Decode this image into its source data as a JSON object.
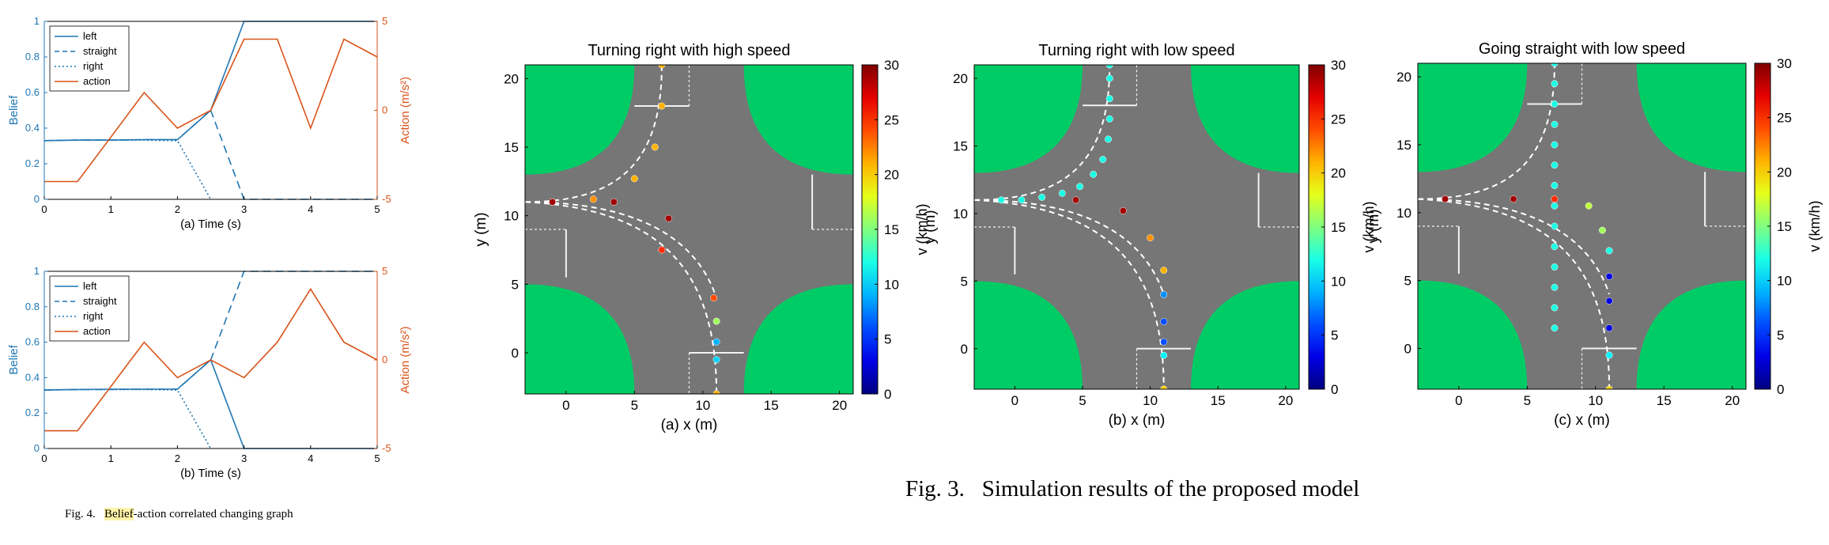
{
  "captions": {
    "fig4_label": "Fig. 4.",
    "fig4_highlight": "Belief",
    "fig4_rest": "-action correlated changing graph",
    "fig3_label": "Fig. 3.",
    "fig3_text": "Simulation results of the proposed model"
  },
  "colors": {
    "belief": "#1f77b4",
    "action": "#d95319",
    "road": "#767676",
    "grass": "#00cc66",
    "frame": "#000000"
  },
  "chart_data": [
    {
      "type": "line",
      "id": "belief-a",
      "xlabel": "(a) Time (s)",
      "ylabel": "Belief",
      "y2label": "Action (m/s²)",
      "xlim": [
        0,
        5
      ],
      "ylim": [
        0,
        1
      ],
      "y2lim": [
        -5,
        5
      ],
      "xticks": [
        0,
        1,
        2,
        3,
        4,
        5
      ],
      "yticks": [
        0,
        0.2,
        0.4,
        0.6,
        0.8,
        1
      ],
      "y2ticks": [
        -5,
        0,
        5
      ],
      "legend_position": "top-left",
      "series": [
        {
          "name": "left",
          "axis": "left",
          "style": "solid",
          "x": [
            0,
            0.5,
            1,
            1.5,
            2,
            2.5,
            3,
            3.5,
            4,
            4.5,
            5
          ],
          "y": [
            0.33,
            0.333,
            0.333,
            0.335,
            0.335,
            0.5,
            1,
            1,
            1,
            1,
            1
          ]
        },
        {
          "name": "straight",
          "axis": "left",
          "style": "dashed",
          "x": [
            0,
            0.5,
            1,
            1.5,
            2,
            2.5,
            3,
            3.5,
            4,
            4.5,
            5
          ],
          "y": [
            0.33,
            0.333,
            0.333,
            0.335,
            0.335,
            0.5,
            0,
            0,
            0,
            0,
            0
          ]
        },
        {
          "name": "right",
          "axis": "left",
          "style": "dotted",
          "x": [
            0,
            0.5,
            1,
            1.5,
            2,
            2.5
          ],
          "y": [
            0.33,
            0.333,
            0.333,
            0.333,
            0.33,
            0
          ]
        },
        {
          "name": "action",
          "axis": "right",
          "style": "solid",
          "x": [
            0,
            0.5,
            1,
            1.5,
            2,
            2.5,
            3,
            3.5,
            4,
            4.5,
            5
          ],
          "y": [
            -4,
            -4,
            -1.5,
            1,
            -1,
            0,
            4,
            4,
            -1,
            4,
            3
          ]
        }
      ]
    },
    {
      "type": "line",
      "id": "belief-b",
      "xlabel": "(b) Time (s)",
      "ylabel": "Belief",
      "y2label": "Action (m/s²)",
      "xlim": [
        0,
        5
      ],
      "ylim": [
        0,
        1
      ],
      "y2lim": [
        -5,
        5
      ],
      "xticks": [
        0,
        1,
        2,
        3,
        4,
        5
      ],
      "yticks": [
        0,
        0.2,
        0.4,
        0.6,
        0.8,
        1
      ],
      "y2ticks": [
        -5,
        0,
        5
      ],
      "legend_position": "top-left",
      "series": [
        {
          "name": "left",
          "axis": "left",
          "style": "solid",
          "x": [
            0,
            0.5,
            1,
            1.5,
            2,
            2.5,
            3,
            3.5,
            4,
            4.5,
            5
          ],
          "y": [
            0.33,
            0.333,
            0.335,
            0.335,
            0.335,
            0.5,
            0,
            0,
            0,
            0,
            0
          ]
        },
        {
          "name": "straight",
          "axis": "left",
          "style": "dashed",
          "x": [
            0,
            0.5,
            1,
            1.5,
            2,
            2.5,
            3,
            3.5,
            4,
            4.5,
            5
          ],
          "y": [
            0.33,
            0.333,
            0.333,
            0.335,
            0.335,
            0.5,
            1,
            1,
            1,
            1,
            1
          ]
        },
        {
          "name": "right",
          "axis": "left",
          "style": "dotted",
          "x": [
            0,
            0.5,
            1,
            1.5,
            2,
            2.5
          ],
          "y": [
            0.33,
            0.333,
            0.333,
            0.333,
            0.33,
            0
          ]
        },
        {
          "name": "action",
          "axis": "right",
          "style": "solid",
          "x": [
            0,
            0.5,
            1,
            1.5,
            2,
            2.5,
            3,
            3.5,
            4,
            4.5,
            5
          ],
          "y": [
            -4,
            -4,
            -1.5,
            1,
            -1,
            0,
            -1,
            1,
            4,
            1,
            0
          ]
        }
      ]
    },
    {
      "type": "scatter",
      "id": "sim-a",
      "title": "Turning right with high speed",
      "xlabel": "(a) x (m)",
      "ylabel": "y (m)",
      "clabel": "v (km/h)",
      "xlim": [
        -3,
        21
      ],
      "ylim": [
        -3,
        21
      ],
      "clim": [
        0,
        30
      ],
      "xticks": [
        0,
        5,
        10,
        15,
        20
      ],
      "yticks": [
        0,
        5,
        10,
        15,
        20
      ],
      "cticks": [
        0,
        5,
        10,
        15,
        20,
        25,
        30
      ],
      "points": [
        [
          -1,
          11,
          24
        ],
        [
          2,
          11.2,
          22
        ],
        [
          5,
          12.7,
          21
        ],
        [
          6.5,
          15,
          21
        ],
        [
          7,
          18,
          21
        ],
        [
          7,
          21,
          21
        ],
        [
          -1,
          11,
          29
        ],
        [
          3.5,
          11,
          29
        ],
        [
          7.5,
          9.8,
          29
        ],
        [
          10.8,
          4,
          24
        ],
        [
          7,
          7.5,
          25
        ],
        [
          11,
          2.3,
          16
        ],
        [
          11,
          0.8,
          9
        ],
        [
          11,
          -0.5,
          10
        ],
        [
          11,
          -3,
          21
        ]
      ],
      "route_left": [
        [
          -3,
          11
        ],
        [
          4,
          11
        ],
        [
          7,
          14
        ],
        [
          7,
          21
        ]
      ],
      "route_straight": [
        [
          -3,
          11
        ],
        [
          7,
          10.5
        ],
        [
          11,
          6
        ],
        [
          11,
          -3
        ]
      ],
      "route_right": [
        [
          -3,
          11
        ],
        [
          5,
          11
        ],
        [
          9.5,
          8.5
        ],
        [
          11,
          4
        ],
        [
          11,
          -3
        ]
      ]
    },
    {
      "type": "scatter",
      "id": "sim-b",
      "title": "Turning right with low speed",
      "xlabel": "(b) x (m)",
      "ylabel": "y (m)",
      "clabel": "v (km/h)",
      "xlim": [
        -3,
        21
      ],
      "ylim": [
        -3,
        21
      ],
      "clim": [
        0,
        30
      ],
      "xticks": [
        0,
        5,
        10,
        15,
        20
      ],
      "yticks": [
        0,
        5,
        10,
        15,
        20
      ],
      "cticks": [
        0,
        5,
        10,
        15,
        20,
        25,
        30
      ],
      "points": [
        [
          -1,
          11,
          12
        ],
        [
          0.5,
          11,
          12
        ],
        [
          2,
          11.2,
          12
        ],
        [
          3.5,
          11.5,
          12
        ],
        [
          4.8,
          12,
          12
        ],
        [
          5.8,
          12.9,
          12
        ],
        [
          6.5,
          14,
          12
        ],
        [
          6.9,
          15.5,
          12
        ],
        [
          7,
          17,
          12
        ],
        [
          7,
          18.5,
          12
        ],
        [
          7,
          20,
          12
        ],
        [
          7,
          21,
          12
        ],
        [
          4.5,
          11,
          29
        ],
        [
          8,
          10.2,
          29
        ],
        [
          10,
          8.2,
          22
        ],
        [
          11,
          5.8,
          21
        ],
        [
          11,
          4,
          8
        ],
        [
          11,
          2,
          6
        ],
        [
          11,
          0.5,
          6
        ],
        [
          11,
          -0.5,
          11
        ],
        [
          11,
          -3,
          20
        ]
      ],
      "route_left": [
        [
          -3,
          11
        ],
        [
          4,
          11
        ],
        [
          7,
          14
        ],
        [
          7,
          21
        ]
      ],
      "route_straight": [
        [
          -3,
          11
        ],
        [
          7,
          10.5
        ],
        [
          11,
          6
        ],
        [
          11,
          -3
        ]
      ],
      "route_right": [
        [
          -3,
          11
        ],
        [
          5,
          11
        ],
        [
          9.5,
          8.5
        ],
        [
          11,
          4
        ],
        [
          11,
          -3
        ]
      ]
    },
    {
      "type": "scatter",
      "id": "sim-c",
      "title": "Going straight with low speed",
      "xlabel": "(c) x (m)",
      "ylabel": "y (m)",
      "clabel": "v (km/h)",
      "xlim": [
        -3,
        21
      ],
      "ylim": [
        -3,
        21
      ],
      "clim": [
        0,
        30
      ],
      "xticks": [
        0,
        5,
        10,
        15,
        20
      ],
      "yticks": [
        0,
        5,
        10,
        15,
        20
      ],
      "cticks": [
        0,
        5,
        10,
        15,
        20,
        25,
        30
      ],
      "points": [
        [
          7,
          1.5,
          12
        ],
        [
          7,
          3,
          12
        ],
        [
          7,
          4.5,
          12
        ],
        [
          7,
          6,
          12
        ],
        [
          7,
          7.5,
          12
        ],
        [
          7,
          9,
          12
        ],
        [
          7,
          10.5,
          12
        ],
        [
          7,
          12,
          12
        ],
        [
          7,
          13.5,
          12
        ],
        [
          7,
          15,
          12
        ],
        [
          7,
          16.5,
          12
        ],
        [
          7,
          18,
          12
        ],
        [
          7,
          19.5,
          12
        ],
        [
          7,
          21,
          12
        ],
        [
          -1,
          11,
          29
        ],
        [
          4,
          11,
          29
        ],
        [
          7,
          11,
          25
        ],
        [
          9.5,
          10.5,
          17
        ],
        [
          10.5,
          8.7,
          16
        ],
        [
          11,
          7.2,
          12
        ],
        [
          11,
          5.3,
          3
        ],
        [
          11,
          3.5,
          3
        ],
        [
          11,
          1.5,
          3
        ],
        [
          11,
          -0.5,
          11
        ],
        [
          11,
          -3,
          20
        ]
      ],
      "route_left": [
        [
          -3,
          11
        ],
        [
          4,
          11
        ],
        [
          7,
          14
        ],
        [
          7,
          21
        ]
      ],
      "route_straight": [
        [
          -3,
          11
        ],
        [
          7,
          10.5
        ],
        [
          11,
          6
        ],
        [
          11,
          -3
        ]
      ],
      "route_right": [
        [
          -3,
          11
        ],
        [
          5,
          11
        ],
        [
          9.5,
          8.5
        ],
        [
          11,
          4
        ],
        [
          11,
          -3
        ]
      ]
    }
  ]
}
